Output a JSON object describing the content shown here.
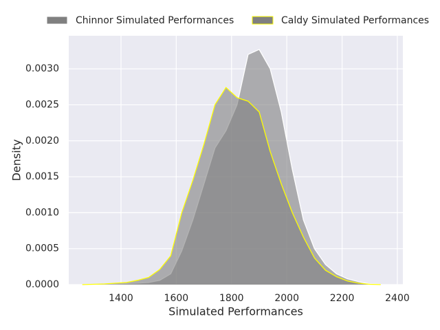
{
  "chart_data": {
    "type": "area",
    "xlabel": "Simulated Performances",
    "ylabel": "Density",
    "x": [
      1260,
      1300,
      1340,
      1380,
      1420,
      1460,
      1500,
      1540,
      1580,
      1620,
      1660,
      1700,
      1740,
      1780,
      1820,
      1860,
      1900,
      1940,
      1980,
      2020,
      2060,
      2100,
      2140,
      2180,
      2220,
      2260,
      2300,
      2340
    ],
    "series": [
      {
        "name": "Chinnor Simulated Performances",
        "color": "#808080",
        "edgecolor": "#ffffff",
        "values": [
          0,
          3e-06,
          6e-06,
          1e-05,
          1.5e-05,
          2e-05,
          3e-05,
          6e-05,
          0.00015,
          0.00047,
          0.0009,
          0.0014,
          0.0019,
          0.00214,
          0.0025,
          0.0032,
          0.00327,
          0.003,
          0.0024,
          0.0016,
          0.0009,
          0.0005,
          0.00028,
          0.00015,
          8e-05,
          4e-05,
          1e-05,
          3e-06
        ]
      },
      {
        "name": "Caldy Simulated Performances",
        "color": "#808080",
        "edgecolor": "#ffff00",
        "values": [
          0,
          5e-06,
          1e-05,
          2e-05,
          3e-05,
          6e-05,
          0.0001,
          0.00021,
          0.0004,
          0.001,
          0.00145,
          0.00195,
          0.0025,
          0.00274,
          0.0026,
          0.00255,
          0.0024,
          0.00185,
          0.0014,
          0.001,
          0.00066,
          0.00037,
          0.0002,
          0.00011,
          5e-05,
          2e-05,
          5e-06,
          0
        ]
      }
    ],
    "xlim": [
      1211,
      2420
    ],
    "ylim": [
      0,
      0.00346
    ],
    "xticks": [
      1400,
      1600,
      1800,
      2000,
      2200,
      2400
    ],
    "yticks": [
      {
        "value": 0,
        "label": "0.0000"
      },
      {
        "value": 0.0005,
        "label": "0.0005"
      },
      {
        "value": 0.001,
        "label": "0.0010"
      },
      {
        "value": 0.0015,
        "label": "0.0015"
      },
      {
        "value": 0.002,
        "label": "0.0020"
      },
      {
        "value": 0.0025,
        "label": "0.0025"
      },
      {
        "value": 0.003,
        "label": "0.0030"
      }
    ],
    "grid": true,
    "legend": "upper center"
  }
}
